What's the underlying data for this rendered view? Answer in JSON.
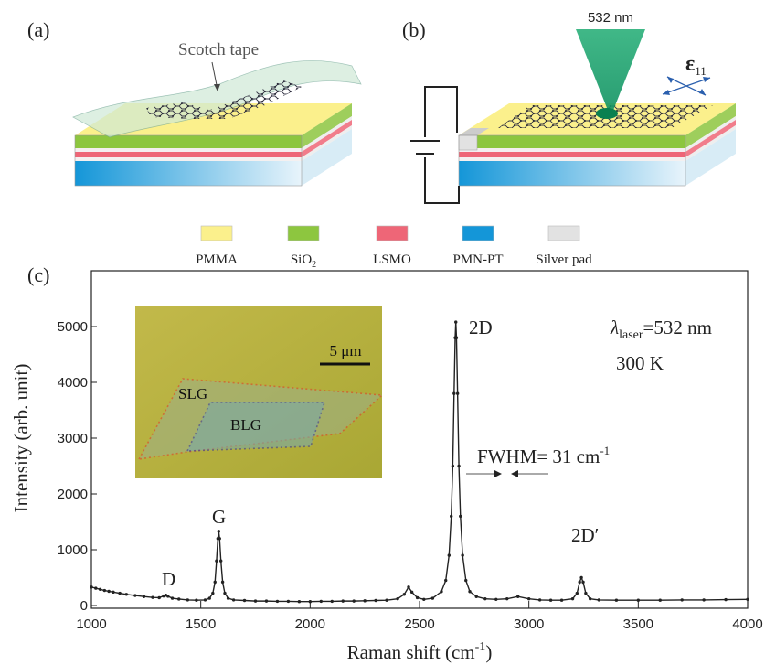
{
  "panel_a": {
    "label": "(a)",
    "tape_label": "Scotch tape"
  },
  "panel_b": {
    "label": "(b)",
    "laser": "532 nm",
    "strain_symbol": "ε",
    "strain_subscript": "11"
  },
  "legend": [
    {
      "name": "PMMA",
      "color": "#fbf08c"
    },
    {
      "name": "SiO",
      "subscript": "2",
      "color": "#8dc63f"
    },
    {
      "name": "LSMO",
      "color": "#ee6677"
    },
    {
      "name": "PMN-PT",
      "color": "#1496d8"
    },
    {
      "name": "Silver pad",
      "color": "#e2e2e2"
    }
  ],
  "chart_data": {
    "type": "line",
    "label": "(c)",
    "x_label": {
      "text": "Raman shift (cm",
      "superscript": "-1",
      "close": ")"
    },
    "y_label": "Intensity (arb. unit)",
    "color": "#222222",
    "xlim": [
      1000,
      4000
    ],
    "ylim": [
      0,
      6000
    ],
    "xticks": [
      1000,
      1500,
      2000,
      2500,
      3000,
      3500,
      4000
    ],
    "yticks": [
      0,
      1000,
      2000,
      3000,
      4000,
      5000
    ],
    "x": [
      1000,
      1020,
      1040,
      1060,
      1080,
      1100,
      1130,
      1160,
      1200,
      1240,
      1280,
      1310,
      1330,
      1340,
      1350,
      1370,
      1400,
      1440,
      1480,
      1520,
      1540,
      1555,
      1565,
      1572,
      1578,
      1582,
      1586,
      1592,
      1600,
      1610,
      1625,
      1650,
      1700,
      1750,
      1800,
      1850,
      1900,
      1950,
      2000,
      2050,
      2100,
      2150,
      2200,
      2250,
      2300,
      2350,
      2400,
      2430,
      2450,
      2465,
      2490,
      2520,
      2560,
      2600,
      2620,
      2635,
      2645,
      2652,
      2658,
      2663,
      2666,
      2669,
      2674,
      2680,
      2687,
      2697,
      2712,
      2730,
      2760,
      2800,
      2850,
      2900,
      2950,
      3000,
      3050,
      3100,
      3150,
      3200,
      3220,
      3232,
      3240,
      3248,
      3260,
      3280,
      3320,
      3400,
      3500,
      3600,
      3700,
      3800,
      3900,
      4000
    ],
    "values": [
      330,
      310,
      290,
      270,
      255,
      240,
      220,
      200,
      180,
      160,
      145,
      140,
      170,
      185,
      165,
      130,
      115,
      100,
      95,
      100,
      130,
      220,
      420,
      800,
      1200,
      1330,
      1200,
      800,
      420,
      220,
      130,
      100,
      90,
      80,
      80,
      75,
      75,
      70,
      70,
      75,
      75,
      80,
      80,
      85,
      90,
      95,
      120,
      200,
      330,
      240,
      140,
      110,
      130,
      250,
      450,
      900,
      1600,
      2500,
      3800,
      4800,
      5080,
      4800,
      3800,
      2500,
      1600,
      900,
      450,
      250,
      160,
      120,
      110,
      120,
      160,
      120,
      100,
      95,
      95,
      120,
      220,
      420,
      500,
      420,
      220,
      120,
      100,
      95,
      95,
      95,
      100,
      100,
      105,
      110
    ],
    "peak_labels": [
      "D",
      "G",
      "2D",
      "2D′"
    ],
    "laser_label": {
      "symbol": "λ",
      "subscript": "laser",
      "text": "=532 nm"
    },
    "temperature": "300 K",
    "fwhm_label": {
      "text": "FWHM= 31 cm",
      "superscript": "-1"
    },
    "inset": {
      "scale_bar": "5 μm",
      "regions": [
        "SLG",
        "BLG"
      ]
    }
  }
}
